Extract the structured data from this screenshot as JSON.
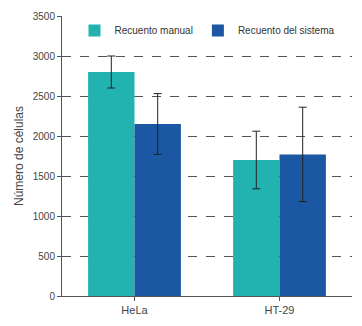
{
  "chart_data": {
    "type": "bar",
    "y_label": "Número de células",
    "categories": [
      "HeLa",
      "HT-29"
    ],
    "series": [
      {
        "name": "Recuento manual",
        "color": "#22b3b0",
        "values": [
          2800,
          1700
        ],
        "errors": [
          200,
          360
        ]
      },
      {
        "name": "Recuento del sistema",
        "color": "#1b57a3",
        "values": [
          2150,
          1770
        ],
        "errors": [
          380,
          590
        ]
      }
    ],
    "ylim": [
      0,
      3500
    ],
    "yticks": [
      0,
      500,
      1000,
      1500,
      2000,
      2500,
      3000,
      3500
    ],
    "grid": true,
    "legend": "top"
  }
}
